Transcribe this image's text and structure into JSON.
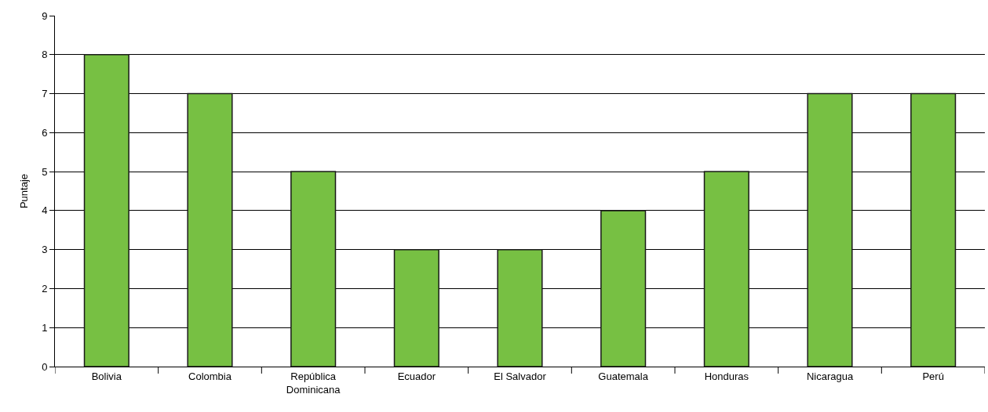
{
  "chart_data": {
    "type": "bar",
    "ylabel": "Puntaje",
    "categories": [
      "Bolivia",
      "Colombia",
      "República Dominicana",
      "Ecuador",
      "El Salvador",
      "Guatemala",
      "Honduras",
      "Nicaragua",
      "Perú"
    ],
    "values": [
      8,
      7,
      5,
      3,
      3,
      4,
      5,
      7,
      7
    ],
    "color": "#77c043",
    "ylim": [
      0,
      9
    ],
    "yticks": [
      0,
      1,
      2,
      3,
      4,
      5,
      6,
      7,
      8,
      9
    ],
    "grid": "y"
  }
}
